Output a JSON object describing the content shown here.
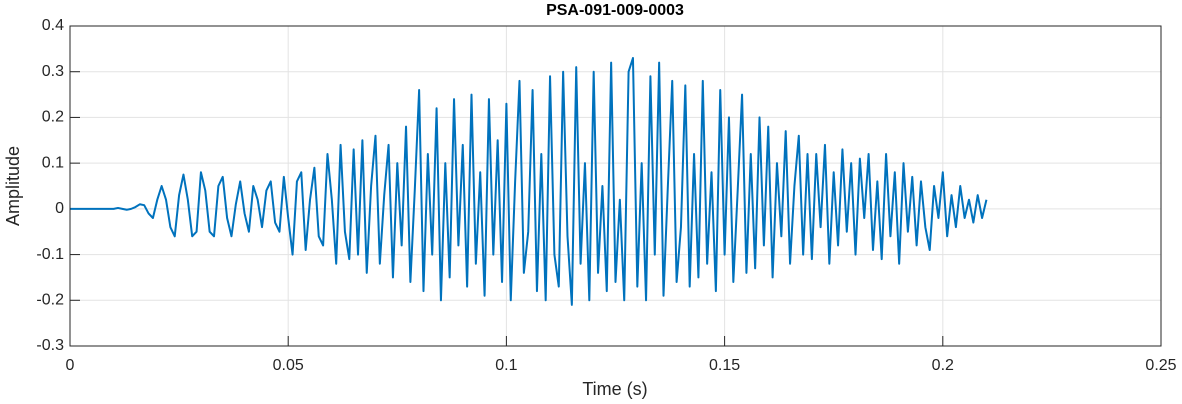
{
  "chart_data": {
    "type": "line",
    "title": "PSA-091-009-0003",
    "xlabel": "Time (s)",
    "ylabel": "Amplitude",
    "color": "#0072bd",
    "grid": true,
    "xlim": [
      0,
      0.25
    ],
    "xticks": [
      0,
      0.05,
      0.1,
      0.15,
      0.2,
      0.25
    ],
    "ylim": [
      -0.3,
      0.4
    ],
    "yticks": [
      0.4,
      0.3,
      0.2,
      0.1,
      0,
      -0.1,
      -0.2,
      -0.3
    ],
    "x": [
      0,
      0.001,
      0.002,
      0.003,
      0.004,
      0.005,
      0.006,
      0.007,
      0.008,
      0.009,
      0.01,
      0.011,
      0.012,
      0.013,
      0.014,
      0.015,
      0.016,
      0.017,
      0.018,
      0.019,
      0.02,
      0.021,
      0.022,
      0.023,
      0.024,
      0.025,
      0.026,
      0.027,
      0.028,
      0.029,
      0.03,
      0.031,
      0.032,
      0.033,
      0.034,
      0.035,
      0.036,
      0.037,
      0.038,
      0.039,
      0.04,
      0.041,
      0.042,
      0.043,
      0.044,
      0.045,
      0.046,
      0.047,
      0.048,
      0.049,
      0.05,
      0.051,
      0.052,
      0.053,
      0.054,
      0.055,
      0.056,
      0.057,
      0.058,
      0.059,
      0.06,
      0.061,
      0.062,
      0.063,
      0.064,
      0.065,
      0.066,
      0.067,
      0.068,
      0.069,
      0.07,
      0.071,
      0.072,
      0.073,
      0.074,
      0.075,
      0.076,
      0.077,
      0.078,
      0.079,
      0.08,
      0.081,
      0.082,
      0.083,
      0.084,
      0.085,
      0.086,
      0.087,
      0.088,
      0.089,
      0.09,
      0.091,
      0.092,
      0.093,
      0.094,
      0.095,
      0.096,
      0.097,
      0.098,
      0.099,
      0.1,
      0.101,
      0.102,
      0.103,
      0.104,
      0.105,
      0.106,
      0.107,
      0.108,
      0.109,
      0.11,
      0.111,
      0.112,
      0.113,
      0.114,
      0.115,
      0.116,
      0.117,
      0.118,
      0.119,
      0.12,
      0.121,
      0.122,
      0.123,
      0.124,
      0.125,
      0.126,
      0.127,
      0.128,
      0.129,
      0.13,
      0.131,
      0.132,
      0.133,
      0.134,
      0.135,
      0.136,
      0.137,
      0.138,
      0.139,
      0.14,
      0.141,
      0.142,
      0.143,
      0.144,
      0.145,
      0.146,
      0.147,
      0.148,
      0.149,
      0.15,
      0.151,
      0.152,
      0.153,
      0.154,
      0.155,
      0.156,
      0.157,
      0.158,
      0.159,
      0.16,
      0.161,
      0.162,
      0.163,
      0.164,
      0.165,
      0.166,
      0.167,
      0.168,
      0.169,
      0.17,
      0.171,
      0.172,
      0.173,
      0.174,
      0.175,
      0.176,
      0.177,
      0.178,
      0.179,
      0.18,
      0.181,
      0.182,
      0.183,
      0.184,
      0.185,
      0.186,
      0.187,
      0.188,
      0.189,
      0.19,
      0.191,
      0.192,
      0.193,
      0.194,
      0.195,
      0.196,
      0.197,
      0.198,
      0.199,
      0.2,
      0.201,
      0.202,
      0.203,
      0.204,
      0.205,
      0.206,
      0.207,
      0.208,
      0.209,
      0.21
    ],
    "values": [
      0,
      0,
      0,
      0,
      0,
      0,
      0,
      0,
      0,
      0,
      0,
      0.002,
      0,
      -0.002,
      0,
      0.004,
      0.01,
      0.008,
      -0.01,
      -0.02,
      0.02,
      0.05,
      0.02,
      -0.04,
      -0.06,
      0.03,
      0.075,
      0.02,
      -0.06,
      -0.05,
      0.08,
      0.04,
      -0.05,
      -0.06,
      0.05,
      0.07,
      -0.02,
      -0.06,
      0.01,
      0.06,
      -0.01,
      -0.05,
      0.05,
      0.02,
      -0.04,
      0.04,
      0.06,
      -0.03,
      -0.05,
      0.07,
      -0.02,
      -0.1,
      0.06,
      0.08,
      -0.09,
      0.02,
      0.09,
      -0.06,
      -0.08,
      0.12,
      0.02,
      -0.12,
      0.14,
      -0.05,
      -0.11,
      0.13,
      -0.1,
      0.15,
      -0.14,
      0.05,
      0.16,
      -0.12,
      0.03,
      0.14,
      -0.15,
      0.1,
      -0.08,
      0.18,
      -0.16,
      0.04,
      0.26,
      -0.18,
      0.12,
      -0.1,
      0.22,
      -0.2,
      0.1,
      -0.15,
      0.24,
      -0.08,
      0.14,
      -0.17,
      0.25,
      -0.12,
      0.08,
      -0.19,
      0.24,
      -0.1,
      0.15,
      -0.16,
      0.23,
      -0.2,
      0.06,
      0.28,
      -0.14,
      -0.05,
      0.26,
      -0.18,
      0.12,
      -0.2,
      0.29,
      -0.1,
      -0.17,
      0.3,
      -0.06,
      -0.21,
      0.31,
      -0.12,
      0.1,
      -0.2,
      0.3,
      -0.14,
      0.05,
      -0.18,
      0.32,
      -0.16,
      0.02,
      -0.2,
      0.3,
      0.33,
      -0.17,
      0.1,
      -0.2,
      0.29,
      -0.1,
      0.32,
      -0.19,
      0.05,
      0.28,
      -0.16,
      -0.04,
      0.27,
      -0.17,
      0.12,
      -0.15,
      0.28,
      -0.12,
      0.08,
      -0.18,
      0.26,
      -0.1,
      0.2,
      -0.16,
      0.04,
      0.25,
      -0.14,
      0.12,
      -0.13,
      0.2,
      -0.08,
      0.18,
      -0.15,
      0.1,
      -0.06,
      0.17,
      -0.12,
      0.05,
      0.16,
      -0.1,
      0.12,
      -0.11,
      0.12,
      -0.04,
      0.14,
      -0.12,
      0.08,
      -0.08,
      0.13,
      -0.05,
      0.1,
      -0.1,
      0.11,
      -0.02,
      0.12,
      -0.09,
      0.06,
      -0.11,
      0.12,
      -0.06,
      0.08,
      -0.12,
      0.1,
      -0.05,
      0.07,
      -0.08,
      0.06,
      -0.04,
      -0.09,
      0.05,
      -0.02,
      0.08,
      -0.06,
      0.03,
      -0.04,
      0.05,
      -0.02,
      0.02,
      -0.03,
      0.03,
      -0.02,
      0.02
    ]
  }
}
